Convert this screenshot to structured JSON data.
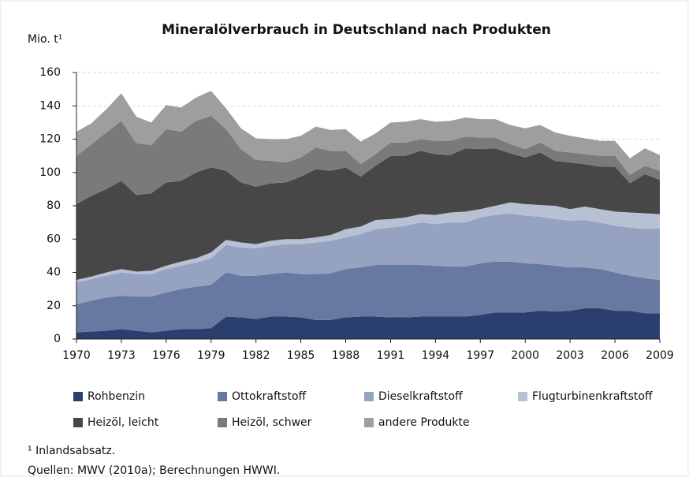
{
  "chart_data": {
    "type": "stacked_area",
    "title": "Mineralölverbrauch in Deutschland nach Produkten",
    "y_label": "Mio. t¹",
    "x": [
      1970,
      1971,
      1972,
      1973,
      1974,
      1975,
      1976,
      1977,
      1978,
      1979,
      1980,
      1981,
      1982,
      1983,
      1984,
      1985,
      1986,
      1987,
      1988,
      1989,
      1990,
      1991,
      1992,
      1993,
      1994,
      1995,
      1996,
      1997,
      1998,
      1999,
      2000,
      2001,
      2002,
      2003,
      2004,
      2005,
      2006,
      2007,
      2008,
      2009
    ],
    "xlim": [
      1970,
      2009
    ],
    "xticks": [
      1970,
      1973,
      1976,
      1979,
      1982,
      1985,
      1988,
      1991,
      1994,
      1997,
      2000,
      2003,
      2006,
      2009
    ],
    "ylim": [
      0,
      160
    ],
    "yticks": [
      0,
      20,
      40,
      60,
      80,
      100,
      120,
      140,
      160
    ],
    "grid": true,
    "series": [
      {
        "name": "Rohbenzin",
        "color": "#2b3f6e",
        "values": [
          4,
          4.5,
          5,
          6,
          5,
          4,
          5,
          6,
          6,
          6.5,
          13.5,
          13,
          12,
          13.5,
          13.5,
          13,
          11.5,
          11.5,
          13,
          13.5,
          13.5,
          13,
          13,
          13.5,
          13.5,
          13.5,
          13.5,
          14.5,
          16,
          16,
          16,
          17,
          16.5,
          17,
          18.5,
          18.5,
          17,
          17,
          15.5,
          15.5
        ]
      },
      {
        "name": "Ottokraftstoff",
        "color": "#6779a1",
        "values": [
          17,
          18.5,
          20,
          20,
          20.5,
          21.5,
          23,
          24,
          25.5,
          26,
          26.5,
          25,
          26,
          25.5,
          26.5,
          26,
          27.5,
          28,
          29,
          29.5,
          31,
          31.5,
          31.5,
          31,
          30.5,
          30,
          30,
          31,
          30.5,
          30.5,
          29.5,
          28,
          27.5,
          26,
          24.5,
          23.5,
          23,
          21,
          21,
          20
        ]
      },
      {
        "name": "Dieselkraftstoff",
        "color": "#95a3c1",
        "values": [
          13,
          13,
          13,
          14,
          13.5,
          13.5,
          14,
          14,
          14.5,
          16,
          16.5,
          17,
          16.5,
          17,
          17,
          18,
          19,
          19.5,
          19,
          20,
          21.5,
          22.5,
          23.5,
          25.5,
          25,
          26.5,
          26.5,
          27.5,
          28,
          29,
          28.5,
          28.5,
          28,
          28,
          28.5,
          28,
          28,
          29,
          29.5,
          31
        ]
      },
      {
        "name": "Flugturbinenkraftstoff",
        "color": "#b8c1d4",
        "values": [
          1.5,
          1.5,
          2,
          2,
          1.5,
          2,
          2,
          2.5,
          2.5,
          3.5,
          3,
          3,
          2.5,
          3,
          3,
          3,
          3,
          3.5,
          5,
          4.5,
          5.5,
          5,
          5,
          5,
          5.5,
          6,
          6.5,
          5,
          5.5,
          6.5,
          7,
          7,
          8,
          7,
          8,
          8,
          8.5,
          9,
          9.5,
          8.5
        ]
      },
      {
        "name": "Heizöl, leicht",
        "color": "#474747",
        "values": [
          45.5,
          48.5,
          50,
          53,
          46,
          46.5,
          50,
          48.5,
          51.5,
          51,
          41.5,
          36,
          34.5,
          34.5,
          34,
          37.5,
          41,
          38.5,
          37,
          30,
          32.5,
          38,
          37,
          38,
          36.5,
          34.5,
          38,
          36,
          34.5,
          29.5,
          28,
          31.5,
          27,
          28,
          25.5,
          25.5,
          27,
          17.5,
          23.5,
          20.5
        ]
      },
      {
        "name": "Heizöl, schwer",
        "color": "#7a7a7a",
        "values": [
          29,
          31,
          34,
          36,
          31,
          29,
          32,
          29.5,
          31,
          31,
          25,
          20,
          16,
          13.5,
          12,
          11.5,
          13,
          12,
          10,
          7.5,
          7,
          8,
          8,
          7,
          8,
          8.5,
          7,
          7,
          6.5,
          5.5,
          5,
          6,
          6,
          6,
          6,
          6.5,
          6.5,
          5,
          5,
          5.5
        ]
      },
      {
        "name": "andere Produkte",
        "color": "#9e9e9e",
        "values": [
          14.5,
          12.5,
          14,
          16.5,
          16,
          13.5,
          14.5,
          14.5,
          14,
          15,
          12.5,
          12.5,
          13,
          13,
          14,
          13,
          12.5,
          12.5,
          13,
          13.5,
          12.5,
          12,
          12.5,
          12,
          11.5,
          12,
          11.5,
          11,
          11,
          11.5,
          12.5,
          10.5,
          11,
          10,
          9.5,
          9,
          9,
          10,
          10.5,
          9.5
        ]
      }
    ],
    "note": "¹ Inlandsabsatz.",
    "source": "Quellen: MWV (2010a); Berechnungen HWWI."
  }
}
